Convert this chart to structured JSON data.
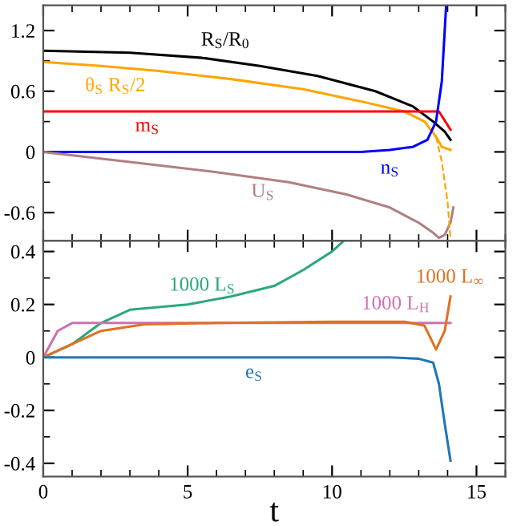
{
  "chart_data": [
    {
      "type": "line",
      "xlim": [
        0,
        16
      ],
      "xticks": [
        0,
        5,
        10,
        15
      ],
      "ylim": [
        -0.88,
        1.45
      ],
      "yticks": [
        -0.6,
        0,
        0.6,
        1.2
      ],
      "tick_labels": "y",
      "grid": false,
      "series": [
        {
          "name": "R$_{S}$/R$_{0}$",
          "color": "#000000",
          "x": [
            0,
            3,
            5.5,
            7.5,
            9.5,
            11.5,
            12.8,
            13.5,
            13.9,
            14.1
          ],
          "values": [
            1.0,
            0.98,
            0.93,
            0.85,
            0.75,
            0.6,
            0.45,
            0.3,
            0.2,
            0.12
          ]
        },
        {
          "name": "θ$_{S}$ R$_{S}$/2",
          "color": "#ffa500",
          "x": [
            0,
            2,
            4,
            6.5,
            9,
            11,
            12.5,
            13.2,
            13.6,
            13.8,
            14.1
          ],
          "values": [
            0.89,
            0.85,
            0.8,
            0.72,
            0.62,
            0.5,
            0.4,
            0.3,
            0.15,
            0.05,
            0.02
          ]
        },
        {
          "name": "m$_{S}$",
          "color": "#ff0000",
          "x": [
            0,
            13.7,
            14.1
          ],
          "values": [
            0.4,
            0.4,
            0.22
          ]
        },
        {
          "name": "n$_{S}$",
          "color": "#0000ff",
          "x": [
            0,
            11,
            12,
            12.8,
            13.3,
            13.6,
            13.8,
            13.95
          ],
          "values": [
            0,
            0,
            0.02,
            0.05,
            0.12,
            0.3,
            0.7,
            1.45
          ]
        },
        {
          "name": "U$_{S}$",
          "color": "#b08080",
          "x": [
            0,
            3,
            6,
            8.5,
            10.5,
            12,
            13,
            13.5,
            13.7,
            13.9,
            14.1,
            14.2
          ],
          "values": [
            0,
            -0.1,
            -0.2,
            -0.3,
            -0.42,
            -0.55,
            -0.7,
            -0.8,
            -0.85,
            -0.82,
            -0.7,
            -0.55
          ]
        },
        {
          "color": "#ffa500",
          "line_style": "dashed",
          "x": [
            13.6,
            13.8,
            14.0,
            14.1
          ],
          "values": [
            0.15,
            -0.1,
            -0.5,
            -0.85
          ]
        }
      ]
    },
    {
      "type": "line",
      "xlim": [
        0,
        16
      ],
      "xticks": [
        0,
        5,
        10,
        15
      ],
      "ylim": [
        -0.45,
        0.44
      ],
      "yticks": [
        -0.4,
        -0.2,
        0,
        0.2,
        0.4
      ],
      "xlabel": "t",
      "grid": false,
      "series": [
        {
          "name": "1000 L$_{S}$",
          "color": "#2ca87a",
          "x": [
            0,
            1,
            2,
            3,
            5,
            6.5,
            8,
            9,
            10,
            10.4
          ],
          "values": [
            0,
            0.05,
            0.13,
            0.18,
            0.2,
            0.23,
            0.27,
            0.33,
            0.4,
            0.44
          ]
        },
        {
          "name": "1000 L$_{H}$",
          "color": "#d070b0",
          "x": [
            0,
            0.5,
            1,
            14.1
          ],
          "values": [
            0,
            0.1,
            0.13,
            0.13
          ]
        },
        {
          "name": "1000 L$_{∞}$",
          "color": "#e07020",
          "x": [
            0,
            1,
            2,
            3.5,
            6,
            10,
            12.5,
            13.2,
            13.6,
            13.9,
            14.1
          ],
          "values": [
            0,
            0.05,
            0.1,
            0.125,
            0.13,
            0.135,
            0.135,
            0.12,
            0.03,
            0.1,
            0.23
          ]
        },
        {
          "name": "e$_{S}$",
          "color": "#1f77b4",
          "x": [
            0,
            12,
            13,
            13.5,
            13.7,
            13.9,
            14.1
          ],
          "values": [
            0,
            0,
            -0.005,
            -0.02,
            -0.1,
            -0.25,
            -0.39
          ]
        }
      ]
    }
  ]
}
